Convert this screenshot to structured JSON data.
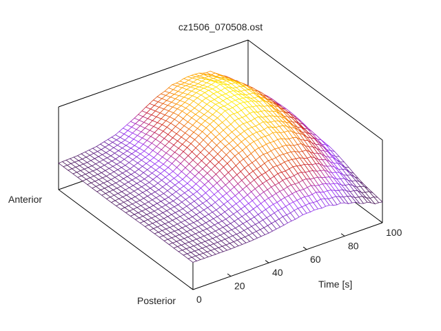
{
  "chart_data": {
    "type": "surface",
    "title": "cz1506_070508.ost",
    "xlabel": "Time [s]",
    "xlim": [
      0,
      100
    ],
    "x_ticks": [
      "0",
      "20",
      "40",
      "60",
      "80",
      "100"
    ],
    "y_labels": {
      "near": "Posterior",
      "far": "Anterior"
    },
    "zlim": [
      0,
      1
    ],
    "grid_t": [
      0,
      10,
      20,
      30,
      40,
      50,
      60,
      70,
      80,
      90,
      100
    ],
    "grid_position": [
      0,
      0.2,
      0.4,
      0.6,
      0.8,
      1.0
    ],
    "z": [
      [
        0.33,
        0.33,
        0.33,
        0.34,
        0.36,
        0.4,
        0.44,
        0.44,
        0.4,
        0.32,
        0.24
      ],
      [
        0.33,
        0.34,
        0.36,
        0.4,
        0.48,
        0.58,
        0.64,
        0.66,
        0.6,
        0.48,
        0.34
      ],
      [
        0.33,
        0.35,
        0.39,
        0.47,
        0.6,
        0.74,
        0.84,
        0.86,
        0.8,
        0.64,
        0.44
      ],
      [
        0.32,
        0.35,
        0.4,
        0.5,
        0.66,
        0.82,
        0.94,
        0.97,
        0.9,
        0.72,
        0.5
      ],
      [
        0.32,
        0.34,
        0.39,
        0.48,
        0.64,
        0.8,
        0.92,
        0.96,
        0.9,
        0.72,
        0.5
      ],
      [
        0.32,
        0.33,
        0.36,
        0.42,
        0.54,
        0.68,
        0.78,
        0.82,
        0.78,
        0.62,
        0.44
      ]
    ],
    "palette": [
      "#502060",
      "#9933ff",
      "#cc2222",
      "#ff9900",
      "#ffee00"
    ],
    "grid": false
  }
}
